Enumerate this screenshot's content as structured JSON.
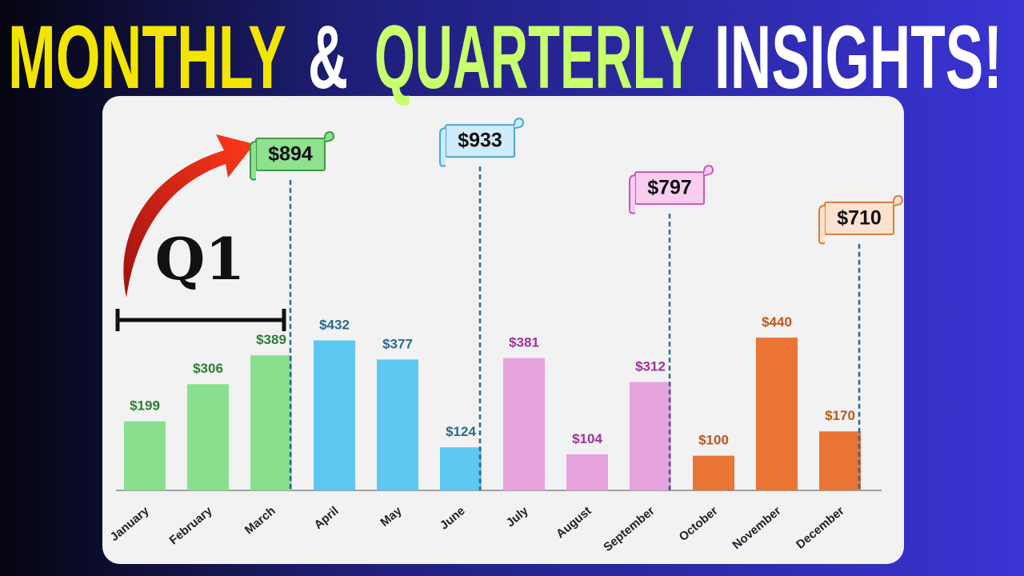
{
  "title": {
    "parts": [
      {
        "text": "MONTHLY",
        "color": "#f2e600"
      },
      {
        "text": "&",
        "color": "#ffffff"
      },
      {
        "text": "QUARTERLY",
        "color": "#c8ff6a"
      },
      {
        "text": "INSIGHTS!",
        "color": "#ffffff"
      }
    ]
  },
  "chart_data": {
    "type": "bar",
    "categories": [
      "January",
      "February",
      "March",
      "April",
      "May",
      "June",
      "July",
      "August",
      "September",
      "October",
      "November",
      "December"
    ],
    "values": [
      199,
      306,
      389,
      432,
      377,
      124,
      381,
      104,
      312,
      100,
      440,
      170
    ],
    "value_labels": [
      "$199",
      "$306",
      "$389",
      "$432",
      "$377",
      "$124",
      "$381",
      "$104",
      "$312",
      "$100",
      "$440",
      "$170"
    ],
    "colors": [
      "#88e08e",
      "#88e08e",
      "#88e08e",
      "#5cc8f2",
      "#5cc8f2",
      "#5cc8f2",
      "#e6a3de",
      "#e6a3de",
      "#e6a3de",
      "#ea7434",
      "#ea7434",
      "#ea7434"
    ],
    "label_colors": [
      "#2e7d32",
      "#2e7d32",
      "#2e7d32",
      "#2a6a90",
      "#2a6a90",
      "#2a6a90",
      "#a0309a",
      "#a0309a",
      "#a0309a",
      "#c0561a",
      "#c0561a",
      "#c0561a"
    ],
    "quarter_totals": {
      "values": [
        894,
        933,
        797,
        710
      ],
      "value_labels": [
        "$894",
        "$933",
        "$797",
        "$710"
      ],
      "fills": [
        "#8fe08f",
        "#cfeaf8",
        "#f8cdf0",
        "#fde2cf"
      ],
      "borders": [
        "#3f9a45",
        "#4aa7d6",
        "#c758b8",
        "#e07a3a"
      ]
    },
    "annotation": "Q1"
  }
}
